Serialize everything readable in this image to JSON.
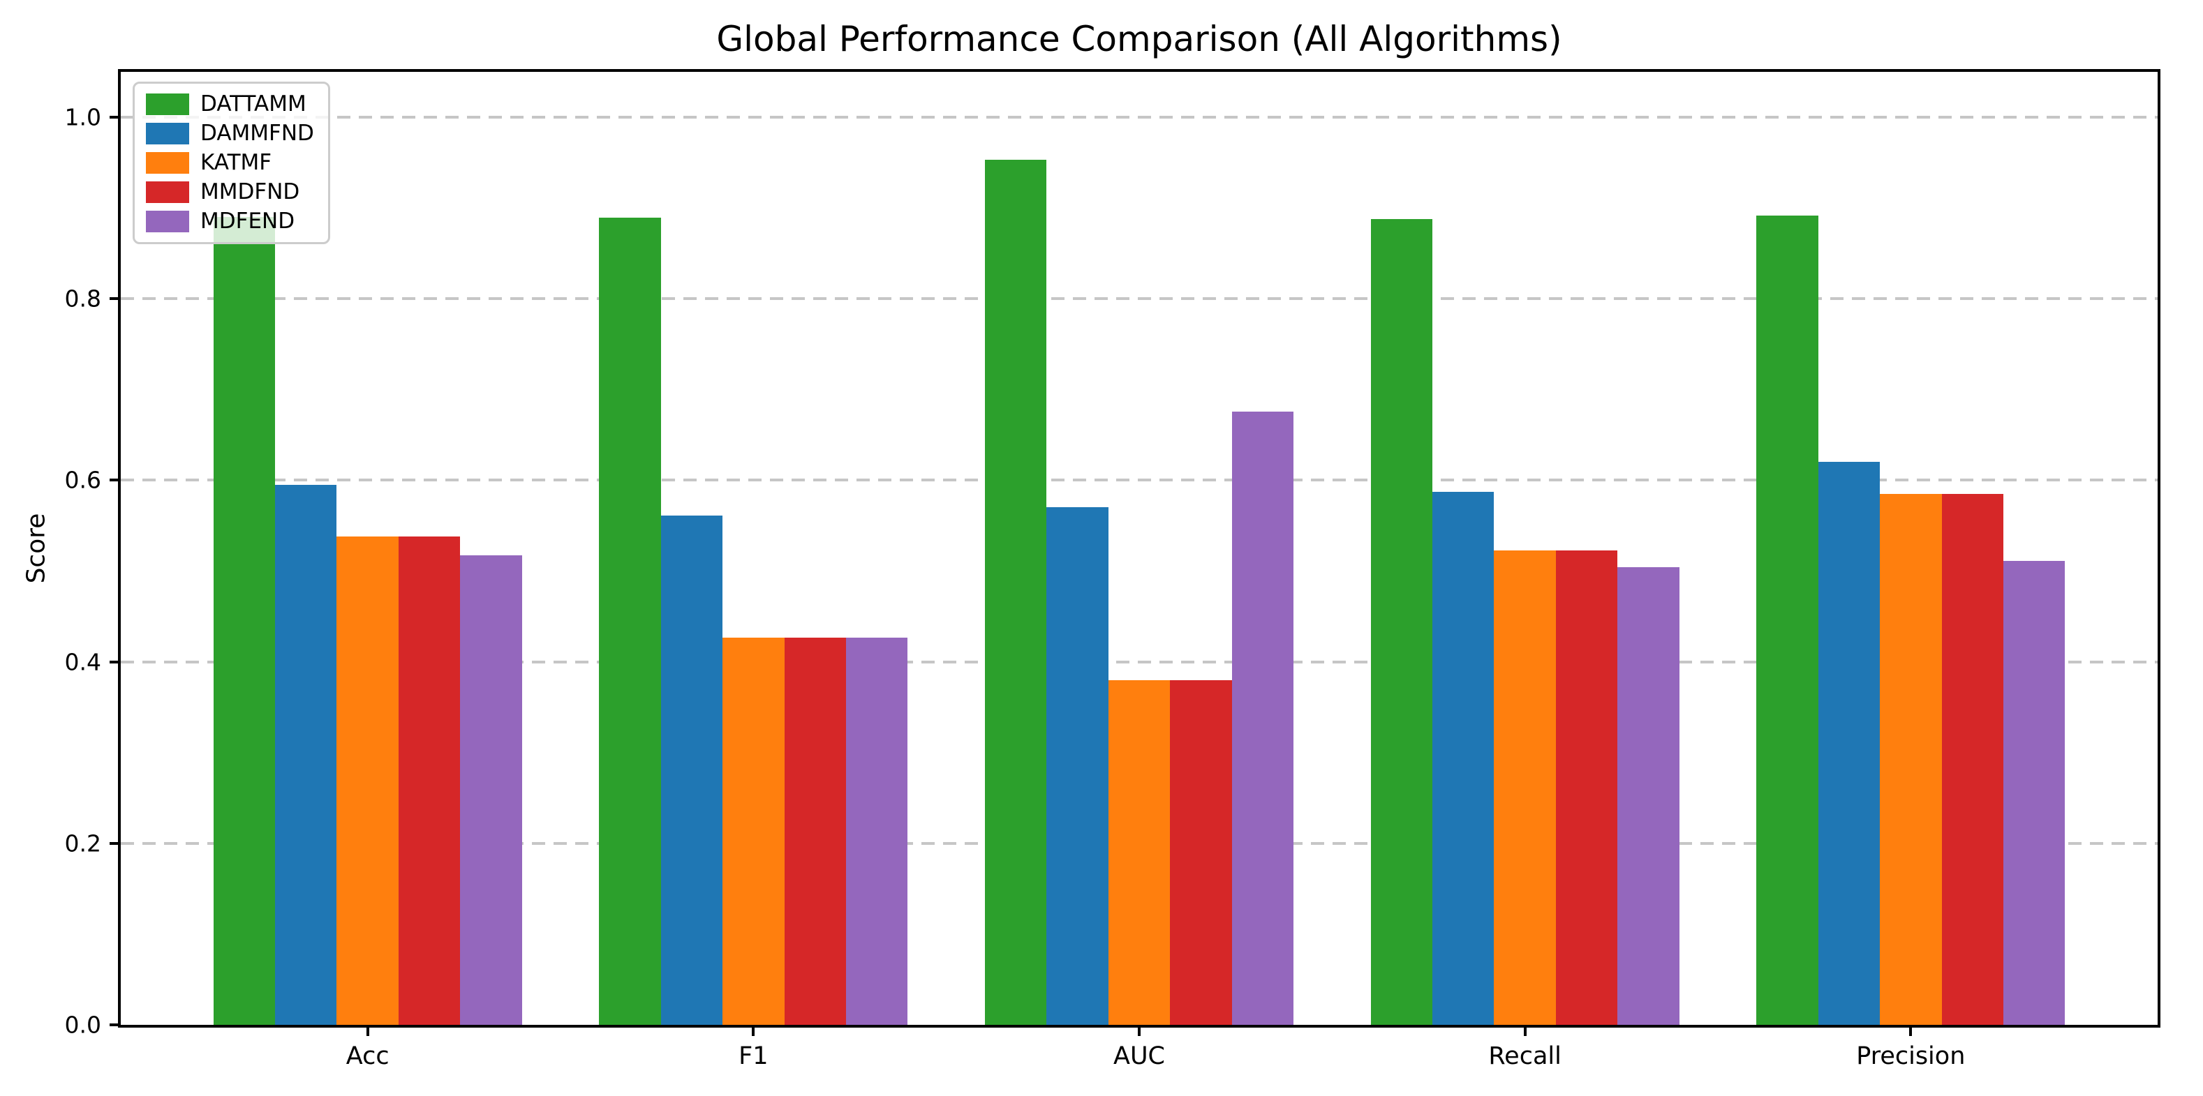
{
  "chart_data": {
    "type": "bar",
    "title": "Global Performance Comparison (All Algorithms)",
    "xlabel": "",
    "ylabel": "Score",
    "categories": [
      "Acc",
      "F1",
      "AUC",
      "Recall",
      "Precision"
    ],
    "series": [
      {
        "name": "DATTAMM",
        "color": "#2ca02c",
        "values": [
          0.89,
          0.889,
          0.953,
          0.888,
          0.892
        ]
      },
      {
        "name": "DAMMFND",
        "color": "#1f77b4",
        "values": [
          0.595,
          0.561,
          0.57,
          0.587,
          0.62
        ]
      },
      {
        "name": "KATMF",
        "color": "#ff7f0e",
        "values": [
          0.538,
          0.427,
          0.38,
          0.523,
          0.585
        ]
      },
      {
        "name": "MMDFND",
        "color": "#d62728",
        "values": [
          0.538,
          0.427,
          0.38,
          0.523,
          0.585
        ]
      },
      {
        "name": "MDFEND",
        "color": "#9467bd",
        "values": [
          0.517,
          0.427,
          0.676,
          0.504,
          0.511
        ]
      }
    ],
    "y_ticks": [
      "0.0",
      "0.2",
      "0.4",
      "0.6",
      "0.8",
      "1.0"
    ],
    "y_tick_values": [
      0.0,
      0.2,
      0.4,
      0.6,
      0.8,
      1.0
    ],
    "ylim": [
      0,
      1.05
    ],
    "xlim": [
      -0.64,
      4.64
    ],
    "bar_width_units": 0.16,
    "grid": "dashed-horizontal-behind-bars",
    "legend_position": "upper-left"
  }
}
